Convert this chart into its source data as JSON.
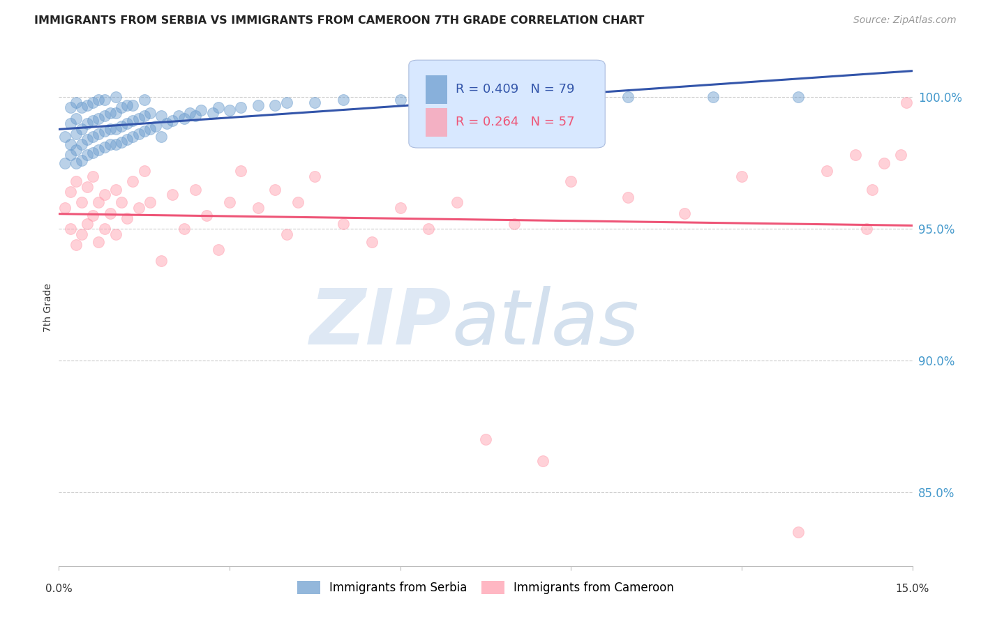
{
  "title": "IMMIGRANTS FROM SERBIA VS IMMIGRANTS FROM CAMEROON 7TH GRADE CORRELATION CHART",
  "source": "Source: ZipAtlas.com",
  "ylabel": "7th Grade",
  "ytick_labels": [
    "100.0%",
    "95.0%",
    "90.0%",
    "85.0%"
  ],
  "ytick_values": [
    1.0,
    0.95,
    0.9,
    0.85
  ],
  "xlim": [
    0.0,
    0.15
  ],
  "ylim": [
    0.822,
    1.018
  ],
  "serbia_R": 0.409,
  "serbia_N": 79,
  "cameroon_R": 0.264,
  "cameroon_N": 57,
  "serbia_color": "#6699CC",
  "cameroon_color": "#FF99AA",
  "serbia_line_color": "#3355AA",
  "cameroon_line_color": "#EE5577",
  "legend_box_color": "#D8E8FF",
  "serbia_scatter_x": [
    0.001,
    0.001,
    0.002,
    0.002,
    0.002,
    0.002,
    0.003,
    0.003,
    0.003,
    0.003,
    0.003,
    0.004,
    0.004,
    0.004,
    0.004,
    0.005,
    0.005,
    0.005,
    0.005,
    0.006,
    0.006,
    0.006,
    0.006,
    0.007,
    0.007,
    0.007,
    0.007,
    0.008,
    0.008,
    0.008,
    0.008,
    0.009,
    0.009,
    0.009,
    0.01,
    0.01,
    0.01,
    0.01,
    0.011,
    0.011,
    0.011,
    0.012,
    0.012,
    0.012,
    0.013,
    0.013,
    0.013,
    0.014,
    0.014,
    0.015,
    0.015,
    0.015,
    0.016,
    0.016,
    0.017,
    0.018,
    0.018,
    0.019,
    0.02,
    0.021,
    0.022,
    0.023,
    0.024,
    0.025,
    0.027,
    0.028,
    0.03,
    0.032,
    0.035,
    0.038,
    0.04,
    0.045,
    0.05,
    0.06,
    0.07,
    0.085,
    0.1,
    0.115,
    0.13
  ],
  "serbia_scatter_y": [
    0.975,
    0.985,
    0.978,
    0.982,
    0.99,
    0.996,
    0.975,
    0.98,
    0.986,
    0.992,
    0.998,
    0.976,
    0.982,
    0.988,
    0.996,
    0.978,
    0.984,
    0.99,
    0.997,
    0.979,
    0.985,
    0.991,
    0.998,
    0.98,
    0.986,
    0.992,
    0.999,
    0.981,
    0.987,
    0.993,
    0.999,
    0.982,
    0.988,
    0.994,
    0.982,
    0.988,
    0.994,
    1.0,
    0.983,
    0.989,
    0.996,
    0.984,
    0.99,
    0.997,
    0.985,
    0.991,
    0.997,
    0.986,
    0.992,
    0.987,
    0.993,
    0.999,
    0.988,
    0.994,
    0.989,
    0.985,
    0.993,
    0.99,
    0.991,
    0.993,
    0.992,
    0.994,
    0.993,
    0.995,
    0.994,
    0.996,
    0.995,
    0.996,
    0.997,
    0.997,
    0.998,
    0.998,
    0.999,
    0.999,
    1.0,
    1.0,
    1.0,
    1.0,
    1.0
  ],
  "cameroon_scatter_x": [
    0.001,
    0.002,
    0.002,
    0.003,
    0.003,
    0.004,
    0.004,
    0.005,
    0.005,
    0.006,
    0.006,
    0.007,
    0.007,
    0.008,
    0.008,
    0.009,
    0.01,
    0.01,
    0.011,
    0.012,
    0.013,
    0.014,
    0.015,
    0.016,
    0.018,
    0.02,
    0.022,
    0.024,
    0.026,
    0.028,
    0.03,
    0.032,
    0.035,
    0.038,
    0.04,
    0.042,
    0.045,
    0.05,
    0.055,
    0.06,
    0.065,
    0.07,
    0.075,
    0.08,
    0.085,
    0.09,
    0.1,
    0.11,
    0.12,
    0.13,
    0.135,
    0.14,
    0.142,
    0.143,
    0.145,
    0.148,
    0.149
  ],
  "cameroon_scatter_y": [
    0.958,
    0.95,
    0.964,
    0.944,
    0.968,
    0.948,
    0.96,
    0.952,
    0.966,
    0.955,
    0.97,
    0.945,
    0.96,
    0.95,
    0.963,
    0.956,
    0.948,
    0.965,
    0.96,
    0.954,
    0.968,
    0.958,
    0.972,
    0.96,
    0.938,
    0.963,
    0.95,
    0.965,
    0.955,
    0.942,
    0.96,
    0.972,
    0.958,
    0.965,
    0.948,
    0.96,
    0.97,
    0.952,
    0.945,
    0.958,
    0.95,
    0.96,
    0.87,
    0.952,
    0.862,
    0.968,
    0.962,
    0.956,
    0.97,
    0.835,
    0.972,
    0.978,
    0.95,
    0.965,
    0.975,
    0.978,
    0.998
  ]
}
